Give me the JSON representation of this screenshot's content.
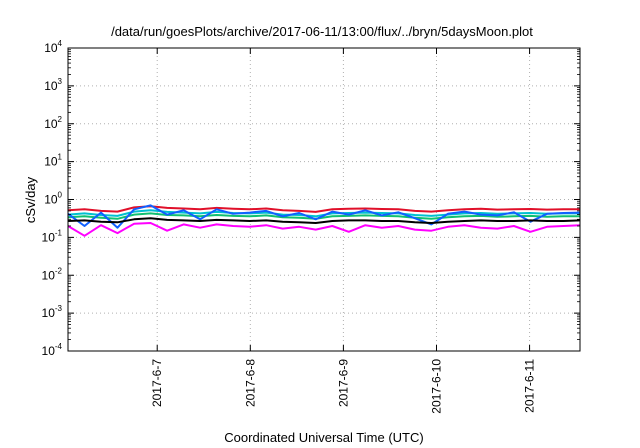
{
  "chart_data": {
    "type": "line",
    "title": "/data/run/goesPlots/archive/2017-06-11/13:00/flux/../bryn/5daysMoon.plot",
    "xlabel": "Coordinated Universal Time (UTC)",
    "ylabel": "cSv/day",
    "yscale": "log",
    "ylim": [
      0.0001,
      10000
    ],
    "y_ticks": [
      {
        "base": "10",
        "exp": "-4",
        "value": 0.0001
      },
      {
        "base": "10",
        "exp": "-3",
        "value": 0.001
      },
      {
        "base": "10",
        "exp": "-2",
        "value": 0.01
      },
      {
        "base": "10",
        "exp": "-1",
        "value": 0.1
      },
      {
        "base": "10",
        "exp": "0",
        "value": 1
      },
      {
        "base": "10",
        "exp": "1",
        "value": 10
      },
      {
        "base": "10",
        "exp": "2",
        "value": 100
      },
      {
        "base": "10",
        "exp": "3",
        "value": 1000
      },
      {
        "base": "10",
        "exp": "4",
        "value": 10000
      }
    ],
    "xlim": [
      "2017-06-06 01:00",
      "2017-06-11 13:00"
    ],
    "x_ticks": [
      "2017-6-7",
      "2017-6-8",
      "2017-6-9",
      "2017-6-10",
      "2017-6-11"
    ],
    "grid": true,
    "series": [
      {
        "color": "#e0102a",
        "values": [
          0.52,
          0.55,
          0.5,
          0.48,
          0.62,
          0.66,
          0.6,
          0.58,
          0.55,
          0.6,
          0.57,
          0.55,
          0.58,
          0.52,
          0.5,
          0.47,
          0.55,
          0.57,
          0.58,
          0.56,
          0.55,
          0.5,
          0.48,
          0.52,
          0.55,
          0.57,
          0.54,
          0.55,
          0.56,
          0.54,
          0.55,
          0.55
        ]
      },
      {
        "color": "#00c0d0",
        "values": [
          0.4,
          0.43,
          0.39,
          0.37,
          0.48,
          0.52,
          0.47,
          0.45,
          0.43,
          0.47,
          0.44,
          0.43,
          0.45,
          0.4,
          0.39,
          0.36,
          0.43,
          0.44,
          0.45,
          0.44,
          0.43,
          0.39,
          0.37,
          0.4,
          0.43,
          0.44,
          0.42,
          0.43,
          0.44,
          0.42,
          0.43,
          0.43
        ]
      },
      {
        "color": "#10c070",
        "values": [
          0.34,
          0.36,
          0.33,
          0.31,
          0.4,
          0.43,
          0.39,
          0.38,
          0.36,
          0.39,
          0.37,
          0.36,
          0.38,
          0.34,
          0.33,
          0.31,
          0.36,
          0.37,
          0.38,
          0.37,
          0.36,
          0.33,
          0.31,
          0.34,
          0.36,
          0.37,
          0.35,
          0.36,
          0.37,
          0.35,
          0.36,
          0.36
        ]
      },
      {
        "color": "#1060ff",
        "values": [
          0.42,
          0.2,
          0.45,
          0.18,
          0.55,
          0.7,
          0.4,
          0.52,
          0.3,
          0.55,
          0.42,
          0.45,
          0.5,
          0.36,
          0.44,
          0.3,
          0.48,
          0.4,
          0.52,
          0.38,
          0.46,
          0.32,
          0.22,
          0.42,
          0.48,
          0.4,
          0.38,
          0.46,
          0.26,
          0.42,
          0.44,
          0.45
        ]
      },
      {
        "color": "#000000",
        "values": [
          0.27,
          0.28,
          0.26,
          0.25,
          0.3,
          0.32,
          0.29,
          0.28,
          0.27,
          0.29,
          0.28,
          0.27,
          0.28,
          0.26,
          0.25,
          0.24,
          0.27,
          0.28,
          0.28,
          0.27,
          0.27,
          0.25,
          0.24,
          0.26,
          0.27,
          0.28,
          0.27,
          0.27,
          0.28,
          0.27,
          0.27,
          0.28
        ]
      },
      {
        "color": "#ff00ff",
        "values": [
          0.2,
          0.11,
          0.21,
          0.13,
          0.23,
          0.24,
          0.15,
          0.22,
          0.18,
          0.22,
          0.2,
          0.19,
          0.21,
          0.17,
          0.19,
          0.16,
          0.2,
          0.14,
          0.21,
          0.18,
          0.2,
          0.16,
          0.15,
          0.19,
          0.21,
          0.18,
          0.17,
          0.2,
          0.14,
          0.19,
          0.2,
          0.21
        ]
      }
    ]
  }
}
